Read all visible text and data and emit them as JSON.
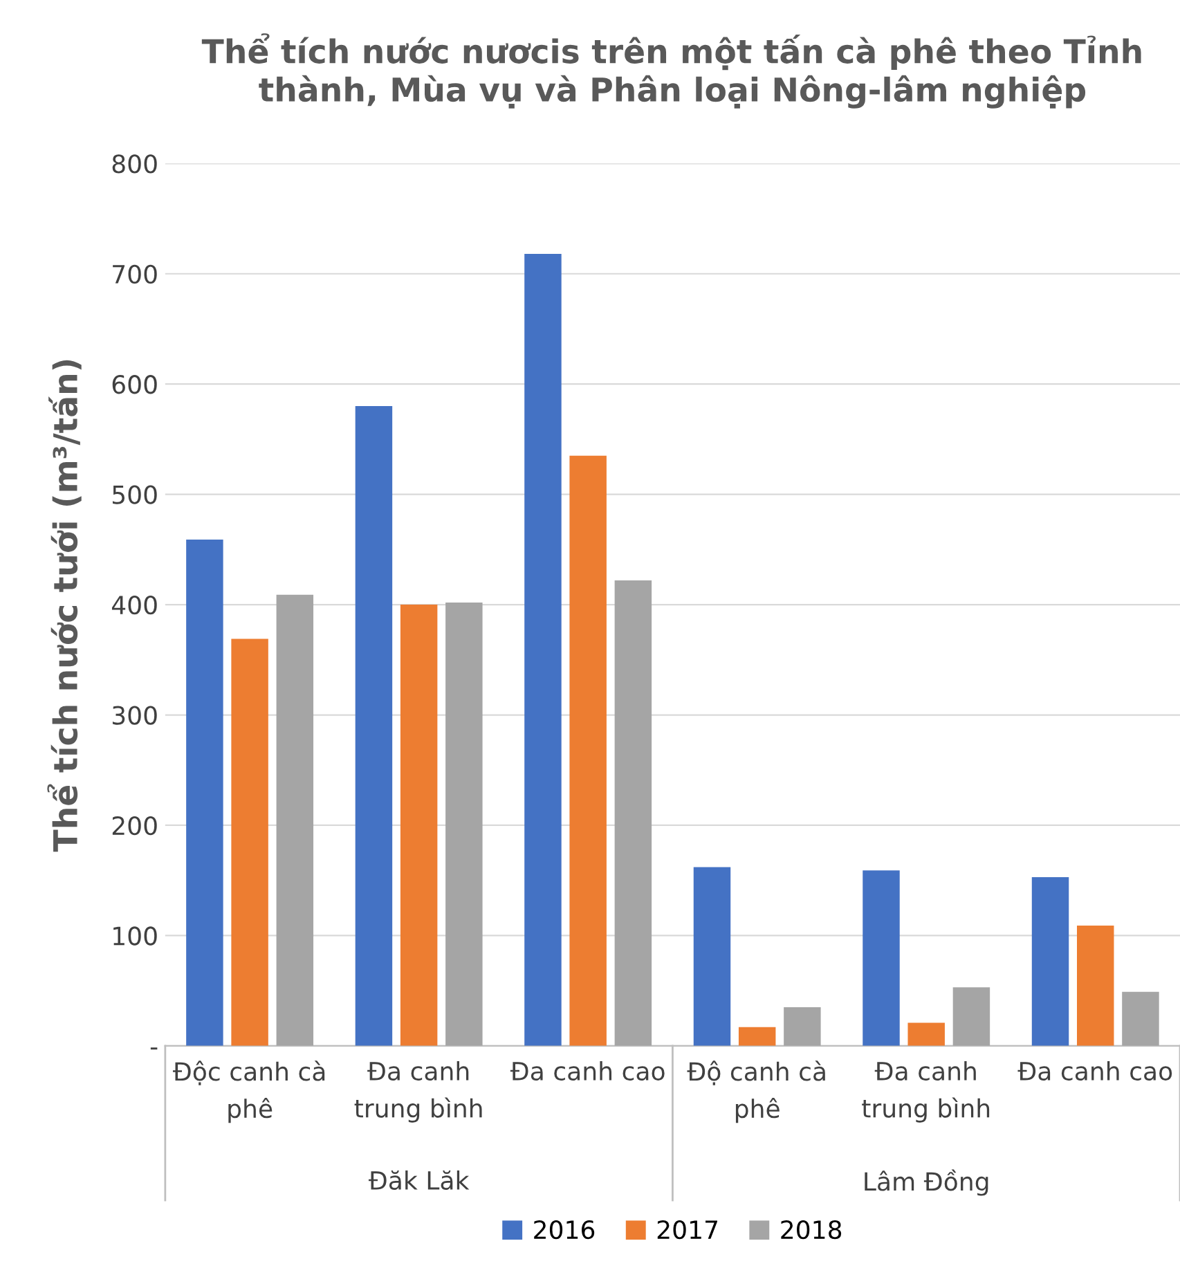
{
  "chart_data": {
    "type": "bar",
    "title": "Thể tích nước nươcis trên một tấn cà phê theo Tỉnh thành, Mùa vụ và Phân loại Nông-lâm nghiệp",
    "ylabel": "Thể tích nước tưới (m³/tấn)",
    "categories": [
      "Độc canh cà\nphê",
      "Đa canh\ntrung bình",
      "Đa canh cao",
      "Độ canh cà\nphê",
      "Đa canh\ntrung bình",
      "Đa canh cao"
    ],
    "annotations": [
      "Đăk Lăk",
      "Lâm Đồng"
    ],
    "series": [
      {
        "name": "2016",
        "color": "#4472c4",
        "values": [
          459,
          580,
          718,
          162,
          159,
          153
        ]
      },
      {
        "name": "2017",
        "color": "#ed7d31",
        "values": [
          369,
          400,
          535,
          17,
          21,
          109
        ]
      },
      {
        "name": "2018",
        "color": "#a5a5a5",
        "values": [
          409,
          402,
          422,
          35,
          53,
          49
        ]
      }
    ],
    "ylim": [
      0,
      800
    ],
    "yticks": [
      {
        "value": 0,
        "label": "-"
      },
      100,
      200,
      300,
      400,
      500,
      600,
      700,
      800
    ],
    "grid": "y",
    "legend": "bottom"
  }
}
